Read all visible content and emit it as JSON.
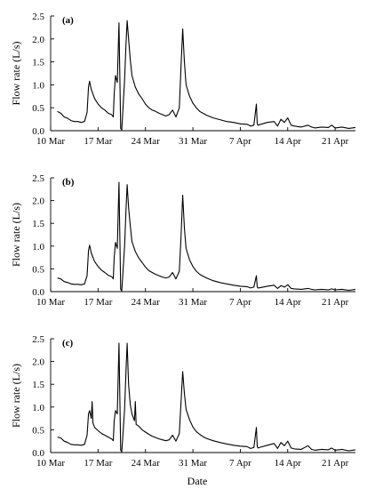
{
  "figure": {
    "xlabel": "Date"
  },
  "chart_data": [
    {
      "type": "line",
      "panel_label": "(a)",
      "ylabel": "Flow rate (L/s)",
      "ylim": [
        0,
        2.5
      ],
      "yticks": [
        "0.0",
        "0.5",
        "1.0",
        "1.5",
        "2.0",
        "2.5"
      ],
      "xlim": [
        "2023-03-10",
        "2023-04-24"
      ],
      "xticks": [
        {
          "date": "2023-03-10",
          "label": "10 Mar"
        },
        {
          "date": "2023-03-17",
          "label": "17 Mar"
        },
        {
          "date": "2023-03-24",
          "label": "24 Mar"
        },
        {
          "date": "2023-03-31",
          "label": "31 Mar"
        },
        {
          "date": "2023-04-07",
          "label": "7 Apr"
        },
        {
          "date": "2023-04-14",
          "label": "14 Apr"
        },
        {
          "date": "2023-04-21",
          "label": "21 Apr"
        }
      ],
      "x": [
        "2023-03-11 00:00",
        "2023-03-11 12:00",
        "2023-03-12 00:00",
        "2023-03-12 12:00",
        "2023-03-13 00:00",
        "2023-03-13 12:00",
        "2023-03-14 00:00",
        "2023-03-14 12:00",
        "2023-03-15 00:00",
        "2023-03-15 09:00",
        "2023-03-15 14:00",
        "2023-03-15 18:00",
        "2023-03-16 00:00",
        "2023-03-16 12:00",
        "2023-03-17 00:00",
        "2023-03-17 12:00",
        "2023-03-18 00:00",
        "2023-03-18 12:00",
        "2023-03-19 00:00",
        "2023-03-19 06:00",
        "2023-03-19 09:00",
        "2023-03-19 14:00",
        "2023-03-19 20:00",
        "2023-03-20 02:00",
        "2023-03-20 08:00",
        "2023-03-20 12:00",
        "2023-03-20 16:00",
        "2023-03-20 22:00",
        "2023-03-21 03:00",
        "2023-03-21 07:00",
        "2023-03-21 12:00",
        "2023-03-21 18:00",
        "2023-03-22 00:00",
        "2023-03-22 12:00",
        "2023-03-23 00:00",
        "2023-03-23 12:00",
        "2023-03-24 00:00",
        "2023-03-24 12:00",
        "2023-03-25 00:00",
        "2023-03-25 12:00",
        "2023-03-26 00:00",
        "2023-03-26 12:00",
        "2023-03-27 00:00",
        "2023-03-27 12:00",
        "2023-03-28 00:00",
        "2023-03-28 12:00",
        "2023-03-29 00:00",
        "2023-03-29 06:00",
        "2023-03-29 12:00",
        "2023-03-29 18:00",
        "2023-03-30 00:00",
        "2023-03-30 12:00",
        "2023-03-31 00:00",
        "2023-03-31 12:00",
        "2023-04-01 00:00",
        "2023-04-01 12:00",
        "2023-04-02 00:00",
        "2023-04-03 00:00",
        "2023-04-04 00:00",
        "2023-04-05 00:00",
        "2023-04-06 00:00",
        "2023-04-07 00:00",
        "2023-04-08 00:00",
        "2023-04-08 12:00",
        "2023-04-09 00:00",
        "2023-04-09 09:00",
        "2023-04-09 12:00",
        "2023-04-09 15:00",
        "2023-04-10 00:00",
        "2023-04-11 00:00",
        "2023-04-12 00:00",
        "2023-04-12 12:00",
        "2023-04-13 00:00",
        "2023-04-13 12:00",
        "2023-04-14 00:00",
        "2023-04-14 12:00",
        "2023-04-15 00:00",
        "2023-04-16 00:00",
        "2023-04-17 00:00",
        "2023-04-17 12:00",
        "2023-04-18 00:00",
        "2023-04-19 00:00",
        "2023-04-20 00:00",
        "2023-04-20 12:00",
        "2023-04-21 00:00",
        "2023-04-22 00:00",
        "2023-04-23 00:00",
        "2023-04-24 00:00"
      ],
      "series": [
        {
          "values": [
            0.42,
            0.38,
            0.3,
            0.27,
            0.22,
            0.2,
            0.2,
            0.18,
            0.2,
            0.4,
            0.95,
            1.08,
            0.9,
            0.7,
            0.58,
            0.5,
            0.45,
            0.38,
            0.35,
            0.3,
            0.8,
            1.2,
            1.05,
            2.35,
            0.05,
            0.02,
            0.45,
            1.1,
            1.9,
            2.4,
            2.0,
            1.55,
            1.2,
            0.95,
            0.8,
            0.7,
            0.58,
            0.5,
            0.45,
            0.42,
            0.38,
            0.35,
            0.32,
            0.35,
            0.45,
            0.3,
            0.5,
            1.4,
            2.22,
            1.5,
            1.0,
            0.75,
            0.6,
            0.5,
            0.42,
            0.38,
            0.34,
            0.28,
            0.24,
            0.2,
            0.18,
            0.15,
            0.14,
            0.1,
            0.12,
            0.58,
            0.15,
            0.12,
            0.14,
            0.18,
            0.2,
            0.1,
            0.25,
            0.18,
            0.28,
            0.12,
            0.1,
            0.08,
            0.12,
            0.08,
            0.06,
            0.08,
            0.07,
            0.12,
            0.06,
            0.08,
            0.05,
            0.07
          ]
        }
      ]
    },
    {
      "type": "line",
      "panel_label": "(b)",
      "ylabel": "Flow rate (L/s)",
      "ylim": [
        0,
        2.5
      ],
      "yticks": [
        "0.0",
        "0.5",
        "1.0",
        "1.5",
        "2.0",
        "2.5"
      ],
      "xlim": [
        "2023-03-10",
        "2023-04-24"
      ],
      "xticks": [
        {
          "date": "2023-03-10",
          "label": "10 Mar"
        },
        {
          "date": "2023-03-17",
          "label": "17 Mar"
        },
        {
          "date": "2023-03-24",
          "label": "24 Mar"
        },
        {
          "date": "2023-03-31",
          "label": "31 Mar"
        },
        {
          "date": "2023-04-07",
          "label": "7 Apr"
        },
        {
          "date": "2023-04-14",
          "label": "14 Apr"
        },
        {
          "date": "2023-04-21",
          "label": "21 Apr"
        }
      ],
      "x": [
        "2023-03-11 00:00",
        "2023-03-11 12:00",
        "2023-03-12 00:00",
        "2023-03-12 12:00",
        "2023-03-13 00:00",
        "2023-03-13 12:00",
        "2023-03-14 00:00",
        "2023-03-14 12:00",
        "2023-03-15 00:00",
        "2023-03-15 09:00",
        "2023-03-15 14:00",
        "2023-03-15 18:00",
        "2023-03-16 00:00",
        "2023-03-16 12:00",
        "2023-03-17 00:00",
        "2023-03-17 12:00",
        "2023-03-18 00:00",
        "2023-03-18 12:00",
        "2023-03-19 00:00",
        "2023-03-19 06:00",
        "2023-03-19 09:00",
        "2023-03-19 14:00",
        "2023-03-19 20:00",
        "2023-03-20 02:00",
        "2023-03-20 08:00",
        "2023-03-20 12:00",
        "2023-03-20 16:00",
        "2023-03-20 22:00",
        "2023-03-21 03:00",
        "2023-03-21 07:00",
        "2023-03-21 12:00",
        "2023-03-21 18:00",
        "2023-03-22 00:00",
        "2023-03-22 12:00",
        "2023-03-23 00:00",
        "2023-03-23 12:00",
        "2023-03-24 00:00",
        "2023-03-24 12:00",
        "2023-03-25 00:00",
        "2023-03-25 12:00",
        "2023-03-26 00:00",
        "2023-03-26 12:00",
        "2023-03-27 00:00",
        "2023-03-27 12:00",
        "2023-03-28 00:00",
        "2023-03-28 12:00",
        "2023-03-29 00:00",
        "2023-03-29 06:00",
        "2023-03-29 12:00",
        "2023-03-29 18:00",
        "2023-03-30 00:00",
        "2023-03-30 12:00",
        "2023-03-31 00:00",
        "2023-03-31 12:00",
        "2023-04-01 00:00",
        "2023-04-01 12:00",
        "2023-04-02 00:00",
        "2023-04-03 00:00",
        "2023-04-04 00:00",
        "2023-04-05 00:00",
        "2023-04-06 00:00",
        "2023-04-07 00:00",
        "2023-04-08 00:00",
        "2023-04-08 12:00",
        "2023-04-09 00:00",
        "2023-04-09 09:00",
        "2023-04-09 12:00",
        "2023-04-09 15:00",
        "2023-04-10 00:00",
        "2023-04-11 00:00",
        "2023-04-12 00:00",
        "2023-04-12 12:00",
        "2023-04-13 00:00",
        "2023-04-13 12:00",
        "2023-04-14 00:00",
        "2023-04-14 12:00",
        "2023-04-15 00:00",
        "2023-04-16 00:00",
        "2023-04-17 00:00",
        "2023-04-17 12:00",
        "2023-04-18 00:00",
        "2023-04-19 00:00",
        "2023-04-20 00:00",
        "2023-04-20 12:00",
        "2023-04-21 00:00",
        "2023-04-22 00:00",
        "2023-04-23 00:00",
        "2023-04-24 00:00"
      ],
      "series": [
        {
          "values": [
            0.3,
            0.28,
            0.22,
            0.2,
            0.17,
            0.16,
            0.16,
            0.15,
            0.17,
            0.35,
            0.9,
            1.02,
            0.85,
            0.66,
            0.55,
            0.47,
            0.42,
            0.36,
            0.33,
            0.28,
            0.75,
            1.08,
            0.95,
            2.4,
            0.05,
            0.02,
            0.4,
            1.0,
            1.8,
            2.35,
            1.85,
            1.45,
            1.1,
            0.88,
            0.74,
            0.64,
            0.54,
            0.46,
            0.42,
            0.38,
            0.35,
            0.32,
            0.3,
            0.32,
            0.42,
            0.28,
            0.45,
            1.2,
            2.12,
            1.4,
            0.95,
            0.7,
            0.55,
            0.45,
            0.38,
            0.34,
            0.3,
            0.24,
            0.2,
            0.17,
            0.14,
            0.12,
            0.11,
            0.08,
            0.1,
            0.35,
            0.1,
            0.08,
            0.09,
            0.12,
            0.14,
            0.07,
            0.13,
            0.1,
            0.15,
            0.07,
            0.06,
            0.05,
            0.07,
            0.05,
            0.04,
            0.05,
            0.04,
            0.06,
            0.04,
            0.05,
            0.03,
            0.05
          ]
        }
      ]
    },
    {
      "type": "line",
      "panel_label": "(c)",
      "ylabel": "Flow rate (L/s)",
      "ylim": [
        0,
        2.5
      ],
      "yticks": [
        "0.0",
        "0.5",
        "1.0",
        "1.5",
        "2.0",
        "2.5"
      ],
      "xlim": [
        "2023-03-10",
        "2023-04-24"
      ],
      "xticks": [
        {
          "date": "2023-03-10",
          "label": "10 Mar"
        },
        {
          "date": "2023-03-17",
          "label": "17 Mar"
        },
        {
          "date": "2023-03-24",
          "label": "24 Mar"
        },
        {
          "date": "2023-03-31",
          "label": "31 Mar"
        },
        {
          "date": "2023-04-07",
          "label": "7 Apr"
        },
        {
          "date": "2023-04-14",
          "label": "14 Apr"
        },
        {
          "date": "2023-04-21",
          "label": "21 Apr"
        }
      ],
      "x": [
        "2023-03-11 00:00",
        "2023-03-11 12:00",
        "2023-03-12 00:00",
        "2023-03-12 12:00",
        "2023-03-13 00:00",
        "2023-03-13 12:00",
        "2023-03-14 00:00",
        "2023-03-14 12:00",
        "2023-03-15 00:00",
        "2023-03-15 09:00",
        "2023-03-15 14:00",
        "2023-03-15 18:00",
        "2023-03-16 00:00",
        "2023-03-16 03:00",
        "2023-03-16 06:00",
        "2023-03-16 12:00",
        "2023-03-17 00:00",
        "2023-03-17 12:00",
        "2023-03-18 00:00",
        "2023-03-18 12:00",
        "2023-03-19 00:00",
        "2023-03-19 06:00",
        "2023-03-19 09:00",
        "2023-03-19 14:00",
        "2023-03-19 20:00",
        "2023-03-20 02:00",
        "2023-03-20 08:00",
        "2023-03-20 12:00",
        "2023-03-20 16:00",
        "2023-03-20 22:00",
        "2023-03-21 03:00",
        "2023-03-21 07:00",
        "2023-03-21 12:00",
        "2023-03-21 18:00",
        "2023-03-22 00:00",
        "2023-03-22 09:00",
        "2023-03-22 12:00",
        "2023-03-22 15:00",
        "2023-03-23 00:00",
        "2023-03-23 12:00",
        "2023-03-24 00:00",
        "2023-03-24 12:00",
        "2023-03-25 00:00",
        "2023-03-25 12:00",
        "2023-03-26 00:00",
        "2023-03-26 12:00",
        "2023-03-27 00:00",
        "2023-03-27 12:00",
        "2023-03-28 00:00",
        "2023-03-28 12:00",
        "2023-03-29 00:00",
        "2023-03-29 06:00",
        "2023-03-29 12:00",
        "2023-03-29 18:00",
        "2023-03-30 00:00",
        "2023-03-30 12:00",
        "2023-03-31 00:00",
        "2023-03-31 12:00",
        "2023-04-01 00:00",
        "2023-04-01 12:00",
        "2023-04-02 00:00",
        "2023-04-03 00:00",
        "2023-04-04 00:00",
        "2023-04-05 00:00",
        "2023-04-06 00:00",
        "2023-04-07 00:00",
        "2023-04-08 00:00",
        "2023-04-08 12:00",
        "2023-04-09 00:00",
        "2023-04-09 09:00",
        "2023-04-09 12:00",
        "2023-04-09 15:00",
        "2023-04-10 00:00",
        "2023-04-11 00:00",
        "2023-04-12 00:00",
        "2023-04-12 12:00",
        "2023-04-13 00:00",
        "2023-04-13 12:00",
        "2023-04-14 00:00",
        "2023-04-14 12:00",
        "2023-04-15 00:00",
        "2023-04-16 00:00",
        "2023-04-17 00:00",
        "2023-04-17 12:00",
        "2023-04-18 00:00",
        "2023-04-19 00:00",
        "2023-04-20 00:00",
        "2023-04-20 12:00",
        "2023-04-21 00:00",
        "2023-04-22 00:00",
        "2023-04-23 00:00",
        "2023-04-24 00:00"
      ],
      "series": [
        {
          "values": [
            0.34,
            0.32,
            0.25,
            0.22,
            0.18,
            0.17,
            0.17,
            0.16,
            0.18,
            0.38,
            0.85,
            0.92,
            0.75,
            1.12,
            0.65,
            0.55,
            0.48,
            0.42,
            0.38,
            0.34,
            0.3,
            0.26,
            0.7,
            0.92,
            0.85,
            2.4,
            0.05,
            0.02,
            0.38,
            0.95,
            1.8,
            2.4,
            1.5,
            1.05,
            0.85,
            0.7,
            1.12,
            0.62,
            0.58,
            0.5,
            0.45,
            0.4,
            0.36,
            0.33,
            0.3,
            0.28,
            0.26,
            0.28,
            0.38,
            0.25,
            0.42,
            1.1,
            1.78,
            1.3,
            0.95,
            0.72,
            0.56,
            0.46,
            0.4,
            0.35,
            0.31,
            0.26,
            0.22,
            0.19,
            0.16,
            0.14,
            0.13,
            0.09,
            0.11,
            0.55,
            0.13,
            0.1,
            0.12,
            0.16,
            0.2,
            0.09,
            0.22,
            0.15,
            0.25,
            0.1,
            0.08,
            0.07,
            0.15,
            0.07,
            0.05,
            0.07,
            0.06,
            0.1,
            0.05,
            0.07,
            0.04,
            0.06
          ]
        }
      ]
    }
  ]
}
